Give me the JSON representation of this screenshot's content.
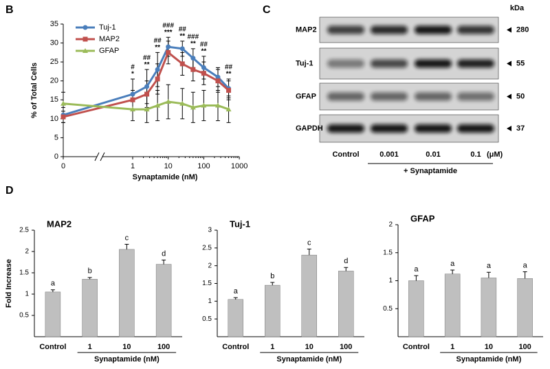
{
  "panels": [
    "B",
    "C",
    "D"
  ],
  "chart_data": [
    {
      "type": "line",
      "xlabel": "Synaptamide (nM)",
      "ylabel": "% of Total Cells",
      "x": [
        0,
        1,
        2.5,
        5,
        10,
        25,
        50,
        100,
        250,
        500
      ],
      "xlim": [
        0,
        1000
      ],
      "xticks": [
        0,
        1,
        10,
        100,
        1000
      ],
      "xscale": "log",
      "x_break": true,
      "ylim": [
        0,
        35
      ],
      "yticks": [
        0,
        5,
        10,
        15,
        20,
        25,
        30,
        35
      ],
      "legend": "upper left",
      "series": [
        {
          "name": "Tuj-1",
          "color": "#4a7ebb",
          "marker": "circle",
          "values": [
            11,
            16.5,
            18.5,
            23,
            29,
            28.5,
            26,
            23.5,
            21,
            18
          ],
          "errors": [
            2,
            4,
            4.5,
            4.5,
            2.5,
            2,
            2.5,
            3,
            2.5,
            2.5
          ]
        },
        {
          "name": "MAP2",
          "color": "#c0504d",
          "marker": "square",
          "values": [
            10.5,
            15,
            16.5,
            20.5,
            27.5,
            24.5,
            23,
            22,
            20,
            17.5
          ],
          "errors": [
            1.5,
            2.5,
            3.5,
            4,
            3,
            3,
            3,
            3,
            3,
            2.5
          ]
        },
        {
          "name": "GFAP",
          "color": "#9bbb59",
          "marker": "triangle",
          "values": [
            14,
            12.5,
            12.5,
            13.5,
            14.5,
            14,
            13,
            13.5,
            13.5,
            12.5
          ],
          "errors": [
            3,
            3,
            3.5,
            4,
            4.5,
            4,
            4,
            4,
            4,
            3.5
          ]
        }
      ],
      "annotations": [
        {
          "x": 1,
          "lines": [
            "#",
            "*"
          ]
        },
        {
          "x": 2.5,
          "lines": [
            "##",
            "**"
          ]
        },
        {
          "x": 5,
          "lines": [
            "##",
            "**"
          ]
        },
        {
          "x": 10,
          "lines": [
            "###",
            "***"
          ]
        },
        {
          "x": 25,
          "lines": [
            "##",
            "**"
          ]
        },
        {
          "x": 50,
          "lines": [
            "###",
            "**"
          ]
        },
        {
          "x": 100,
          "lines": [
            "##",
            "**"
          ]
        },
        {
          "x": 500,
          "lines": [
            "##",
            "**"
          ]
        }
      ]
    },
    {
      "type": "bar",
      "title": "MAP2",
      "ylabel": "Fold Increase",
      "xlabel": "Synaptamide (nM)",
      "categories": [
        "Control",
        "1",
        "10",
        "100"
      ],
      "values": [
        1.05,
        1.35,
        2.05,
        1.7
      ],
      "errors": [
        0.05,
        0.04,
        0.12,
        0.1
      ],
      "letters": [
        "a",
        "b",
        "c",
        "d"
      ],
      "color": "#bfbfbf",
      "ylim": [
        0,
        2.5
      ],
      "yticks": [
        0.5,
        1,
        1.5,
        2,
        2.5
      ]
    },
    {
      "type": "bar",
      "title": "Tuj-1",
      "xlabel": "Synaptamide (nM)",
      "categories": [
        "Control",
        "1",
        "10",
        "100"
      ],
      "values": [
        1.05,
        1.45,
        2.3,
        1.85
      ],
      "errors": [
        0.05,
        0.08,
        0.17,
        0.1
      ],
      "letters": [
        "a",
        "b",
        "c",
        "d"
      ],
      "color": "#bfbfbf",
      "ylim": [
        0,
        3
      ],
      "yticks": [
        0.5,
        1,
        1.5,
        2,
        2.5,
        3
      ]
    },
    {
      "type": "bar",
      "title": "GFAP",
      "xlabel": "Synaptamide (nM)",
      "categories": [
        "Control",
        "1",
        "10",
        "100"
      ],
      "values": [
        1.0,
        1.12,
        1.05,
        1.04
      ],
      "errors": [
        0.09,
        0.07,
        0.1,
        0.12
      ],
      "letters": [
        "a",
        "a",
        "a",
        "a"
      ],
      "color": "#bfbfbf",
      "ylim": [
        0,
        2
      ],
      "yticks": [
        0.5,
        1,
        1.5,
        2
      ]
    }
  ],
  "blot": {
    "kda": "kDa",
    "rows": [
      {
        "label": "MAP2",
        "marker": 280
      },
      {
        "label": "Tuj-1",
        "marker": 55
      },
      {
        "label": "GFAP",
        "marker": 50
      },
      {
        "label": "GAPDH",
        "marker": 37
      }
    ],
    "lanes": [
      "Control",
      "0.001",
      "0.01",
      "0.1"
    ],
    "unit": "(μM)",
    "treatment": "+ Synaptamide"
  }
}
